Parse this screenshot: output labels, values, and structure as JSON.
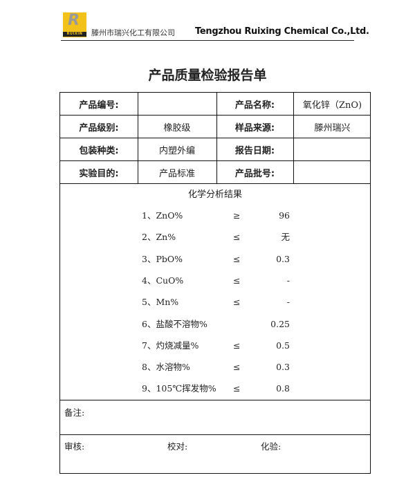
{
  "header": {
    "logo_text": "RUIXIN",
    "company_cn": "滕州市瑞兴化工有限公司",
    "company_en": "Tengzhou Ruixing Chemical Co.,Ltd."
  },
  "title": "产品质量检验报告单",
  "info_rows": [
    {
      "l1": "产品编号:",
      "v1": "",
      "l2": "产品名称:",
      "v2": "氧化锌（ZnO)"
    },
    {
      "l1": "产品级别:",
      "v1": "橡胶级",
      "l2": "样品来源:",
      "v2": "滕州瑞兴"
    },
    {
      "l1": "包装种类:",
      "v1": "内塑外编",
      "l2": "报告日期:",
      "v2": ""
    },
    {
      "l1": "实验目的:",
      "v1": "产品标准",
      "l2": "产品批号:",
      "v2": ""
    }
  ],
  "analysis": {
    "heading": "化学分析结果",
    "items": [
      {
        "name": "1、ZnO%",
        "op": "≥",
        "value": "96"
      },
      {
        "name": "2、Zn%",
        "op": "≤",
        "value": "无"
      },
      {
        "name": "3、PbO%",
        "op": "≤",
        "value": "0.3"
      },
      {
        "name": "4、CuO%",
        "op": "≤",
        "value": "-"
      },
      {
        "name": "5、Mn%",
        "op": "≤",
        "value": "-"
      },
      {
        "name": "6、盐酸不溶物%",
        "op": "",
        "value": "0.25"
      },
      {
        "name": "7、灼烧减量%",
        "op": "≤",
        "value": "0.5"
      },
      {
        "name": "8、水溶物%",
        "op": "≤",
        "value": "0.3"
      },
      {
        "name": "9、105℃挥发物%",
        "op": "≤",
        "value": "0.8"
      }
    ]
  },
  "remarks_label": "备注:",
  "signoff": {
    "review": "审核:",
    "check": "校对:",
    "test": "化验:"
  }
}
